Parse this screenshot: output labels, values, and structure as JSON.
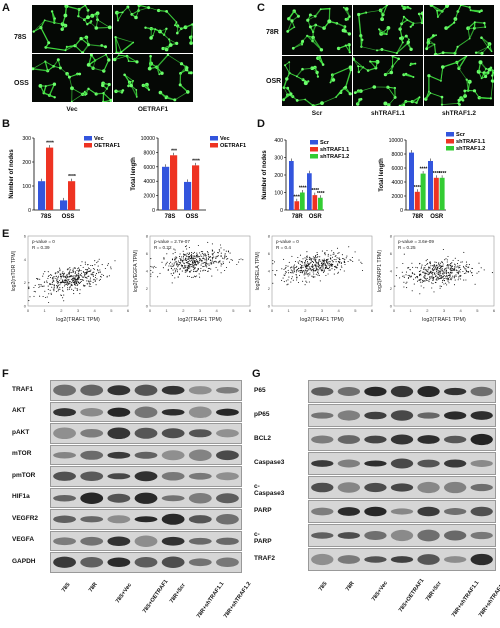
{
  "panels": {
    "A": {
      "label": "A",
      "rows": [
        "78S",
        "OSS"
      ],
      "cols": [
        "Vec",
        "OETRAF1"
      ]
    },
    "C": {
      "label": "C",
      "rows": [
        "78R",
        "OSR"
      ],
      "cols": [
        "Scr",
        "shTRAF1.1",
        "shTRAF1.2"
      ]
    },
    "B": {
      "label": "B"
    },
    "D": {
      "label": "D"
    },
    "E": {
      "label": "E"
    },
    "F": {
      "label": "F",
      "proteins": [
        "TRAF1",
        "AKT",
        "pAKT",
        "mTOR",
        "pmTOR",
        "HIF1a",
        "VEGFR2",
        "VEGFA",
        "GAPDH"
      ],
      "lanes": [
        "78S",
        "78R",
        "78S+Vec",
        "78S+OETRAF1",
        "78R+Scr",
        "78R+shTRAF1.1",
        "78R+shTRAF1.2"
      ]
    },
    "G": {
      "label": "G",
      "proteins": [
        "P65",
        "pP65",
        "BCL2",
        "Caspase3",
        "c-Caspase3",
        "PARP",
        "c-PARP",
        "TRAF2"
      ],
      "lanes": [
        "78S",
        "78R",
        "78S+Vec",
        "78S+OETRAF1",
        "78R+Scr",
        "78R+shTRAF1.1",
        "78R+shTRAF1.2"
      ]
    }
  },
  "chart_data": [
    {
      "id": "B1",
      "type": "bar",
      "categories": [
        "78S",
        "OSS"
      ],
      "series": [
        {
          "name": "Vec",
          "values": [
            120,
            40
          ],
          "color": "#3355dd"
        },
        {
          "name": "OETRAF1",
          "values": [
            260,
            120
          ],
          "color": "#ee3322"
        }
      ],
      "ylabel": "Number of nodes",
      "ylim": [
        0,
        300
      ],
      "yticks": [
        "0",
        "100",
        "200",
        "300"
      ],
      "sig": [
        "****",
        "****"
      ]
    },
    {
      "id": "B2",
      "type": "bar",
      "categories": [
        "78S",
        "OSS"
      ],
      "series": [
        {
          "name": "Vec",
          "values": [
            6000,
            3900
          ],
          "color": "#3355dd"
        },
        {
          "name": "OETRAF1",
          "values": [
            7600,
            6200
          ],
          "color": "#ee3322"
        }
      ],
      "ylabel": "Total length",
      "ylim": [
        0,
        10000
      ],
      "yticks": [
        "0",
        "2000",
        "4000",
        "6000",
        "8000",
        "10000"
      ],
      "sig": [
        "***",
        "****"
      ]
    },
    {
      "id": "D1",
      "type": "bar",
      "categories": [
        "78R",
        "OSR"
      ],
      "series": [
        {
          "name": "Scr",
          "values": [
            280,
            210
          ],
          "color": "#3355dd"
        },
        {
          "name": "shTRAF1.1",
          "values": [
            50,
            85
          ],
          "color": "#ee3322"
        },
        {
          "name": "shTRAF1.2",
          "values": [
            100,
            70
          ],
          "color": "#33cc33"
        }
      ],
      "ylabel": "Number of nodes",
      "ylim": [
        0,
        400
      ],
      "yticks": [
        "0",
        "100",
        "200",
        "300",
        "400"
      ],
      "sig": [
        "****",
        "****",
        "****",
        "****"
      ]
    },
    {
      "id": "D2",
      "type": "bar",
      "categories": [
        "78R",
        "OSR"
      ],
      "series": [
        {
          "name": "Scr",
          "values": [
            8200,
            7000
          ],
          "color": "#3355dd"
        },
        {
          "name": "shTRAF1.1",
          "values": [
            2600,
            4600
          ],
          "color": "#ee3322"
        },
        {
          "name": "shTRAF1.2",
          "values": [
            5200,
            4600
          ],
          "color": "#33cc33"
        }
      ],
      "ylabel": "Total length",
      "ylim": [
        0,
        10000
      ],
      "yticks": [
        "0",
        "2000",
        "4000",
        "6000",
        "8000",
        "10000"
      ],
      "sig": [
        "****",
        "****",
        "****",
        "****"
      ]
    },
    {
      "id": "E1",
      "type": "scatter",
      "ylabel": "log2(mTOR TPM)",
      "xlabel": "log2(TRAF1 TPM)",
      "stat_p": "p-value = 0",
      "stat_r": "R = 0.39",
      "xlim": [
        0,
        6
      ],
      "ylim": [
        0,
        6
      ],
      "xticks": [
        "0",
        "1",
        "2",
        "3",
        "4",
        "5",
        "6"
      ],
      "yticks": [
        "0",
        "2",
        "4",
        "6"
      ],
      "trend": [
        2.3,
        0.39
      ]
    },
    {
      "id": "E2",
      "type": "scatter",
      "ylabel": "log2(VEGFA TPM)",
      "xlabel": "log2(TRAF1 TPM)",
      "stat_p": "p-value = 2.7e-07",
      "stat_r": "R = 0.22",
      "xlim": [
        0,
        6
      ],
      "ylim": [
        0,
        8
      ],
      "xticks": [
        "0",
        "1",
        "2",
        "3",
        "4",
        "5",
        "6"
      ],
      "yticks": [
        "0",
        "2",
        "4",
        "6",
        "8"
      ],
      "trend": [
        5.0,
        0.22
      ]
    },
    {
      "id": "E3",
      "type": "scatter",
      "ylabel": "log2(RELA TPM)",
      "xlabel": "log2(TRAF1 TPM)",
      "stat_p": "p-value = 0",
      "stat_r": "R = 0.4",
      "xlim": [
        0,
        6
      ],
      "ylim": [
        0,
        8
      ],
      "xticks": [
        "0",
        "1",
        "2",
        "3",
        "4",
        "5",
        "6"
      ],
      "yticks": [
        "0",
        "2",
        "4",
        "6",
        "8"
      ],
      "trend": [
        4.6,
        0.4
      ]
    },
    {
      "id": "E4",
      "type": "scatter",
      "ylabel": "log2(PARP1 TPM)",
      "xlabel": "log2(TRAF1 TPM)",
      "stat_p": "p-value = 3.6e-09",
      "stat_r": "R = 0.25",
      "xlim": [
        0,
        6
      ],
      "ylim": [
        0,
        8
      ],
      "xticks": [
        "0",
        "1",
        "2",
        "3",
        "4",
        "5",
        "6"
      ],
      "yticks": [
        "0",
        "2",
        "4",
        "6",
        "8"
      ],
      "trend": [
        3.8,
        0.25
      ]
    }
  ]
}
